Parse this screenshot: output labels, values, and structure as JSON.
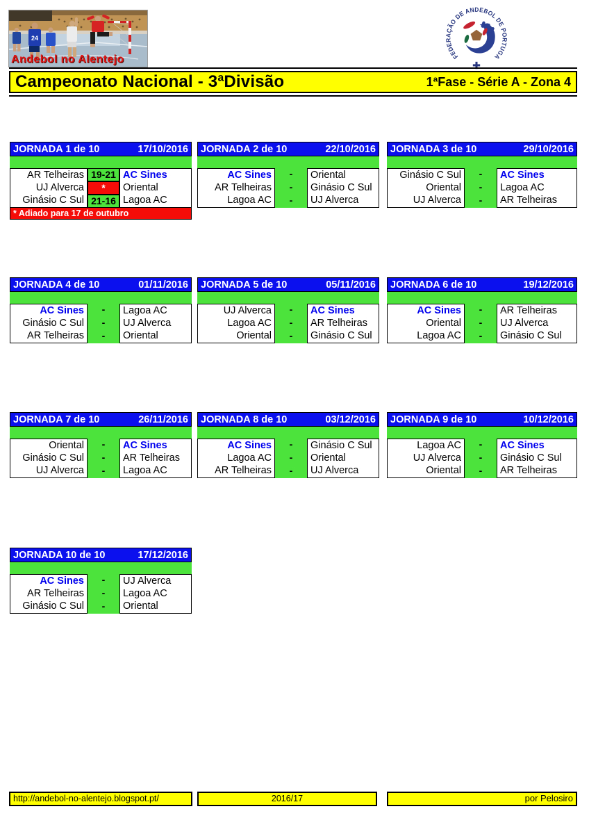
{
  "header": {
    "photo_caption": "Andebol no Alentejo",
    "photo_player_number": "24",
    "logo_ring_text": "FEDERAÇÃO DE ANDEBOL DE PORTUGAL",
    "title": "Campeonato Nacional - 3ªDivisão",
    "subtitle": "1ªFase - Série A - Zona 4"
  },
  "highlight_team": "AC Sines",
  "colors": {
    "header_blue": "#0b10ef",
    "pitch_green": "#4ce33c",
    "alert_red": "#f50b08",
    "banner_yellow": "#ffff00",
    "highlight_team_blue": "#0000ee"
  },
  "jornadas": [
    {
      "title": "JORNADA 1 de 10",
      "date": "17/10/2016",
      "matches": [
        {
          "home": "AR Telheiras",
          "score": "19-21",
          "status": "played",
          "away": "AC Sines"
        },
        {
          "home": "UJ Alverca",
          "score": "*",
          "status": "postponed",
          "away": "Oriental"
        },
        {
          "home": "Ginásio C Sul",
          "score": "21-16",
          "status": "played",
          "away": "Lagoa AC"
        }
      ],
      "note": "* Adiado para 17 de outubro"
    },
    {
      "title": "JORNADA 2 de 10",
      "date": "22/10/2016",
      "matches": [
        {
          "home": "AC Sines",
          "score": "-",
          "status": "fixture",
          "away": "Oriental"
        },
        {
          "home": "AR Telheiras",
          "score": "-",
          "status": "fixture",
          "away": "Ginásio C Sul"
        },
        {
          "home": "Lagoa AC",
          "score": "-",
          "status": "fixture",
          "away": "UJ Alverca"
        }
      ]
    },
    {
      "title": "JORNADA 3 de 10",
      "date": "29/10/2016",
      "matches": [
        {
          "home": "Ginásio C Sul",
          "score": "-",
          "status": "fixture",
          "away": "AC Sines"
        },
        {
          "home": "Oriental",
          "score": "-",
          "status": "fixture",
          "away": "Lagoa AC"
        },
        {
          "home": "UJ Alverca",
          "score": "-",
          "status": "fixture",
          "away": "AR Telheiras"
        }
      ]
    },
    {
      "title": "JORNADA 4 de 10",
      "date": "01/11/2016",
      "matches": [
        {
          "home": "AC Sines",
          "score": "-",
          "status": "fixture",
          "away": "Lagoa AC"
        },
        {
          "home": "Ginásio C Sul",
          "score": "-",
          "status": "fixture",
          "away": "UJ Alverca"
        },
        {
          "home": "AR Telheiras",
          "score": "-",
          "status": "fixture",
          "away": "Oriental"
        }
      ]
    },
    {
      "title": "JORNADA 5 de 10",
      "date": "05/11/2016",
      "matches": [
        {
          "home": "UJ Alverca",
          "score": "-",
          "status": "fixture",
          "away": "AC Sines"
        },
        {
          "home": "Lagoa AC",
          "score": "-",
          "status": "fixture",
          "away": "AR Telheiras"
        },
        {
          "home": "Oriental",
          "score": "-",
          "status": "fixture",
          "away": "Ginásio C Sul"
        }
      ]
    },
    {
      "title": "JORNADA 6 de 10",
      "date": "19/12/2016",
      "matches": [
        {
          "home": "AC Sines",
          "score": "-",
          "status": "fixture",
          "away": "AR Telheiras"
        },
        {
          "home": "Oriental",
          "score": "-",
          "status": "fixture",
          "away": "UJ Alverca"
        },
        {
          "home": "Lagoa AC",
          "score": "-",
          "status": "fixture",
          "away": "Ginásio C Sul"
        }
      ]
    },
    {
      "title": "JORNADA 7 de 10",
      "date": "26/11/2016",
      "matches": [
        {
          "home": "Oriental",
          "score": "-",
          "status": "fixture",
          "away": "AC Sines"
        },
        {
          "home": "Ginásio C Sul",
          "score": "-",
          "status": "fixture",
          "away": "AR Telheiras"
        },
        {
          "home": "UJ Alverca",
          "score": "-",
          "status": "fixture",
          "away": "Lagoa AC"
        }
      ]
    },
    {
      "title": "JORNADA 8 de 10",
      "date": "03/12/2016",
      "matches": [
        {
          "home": "AC Sines",
          "score": "-",
          "status": "fixture",
          "away": "Ginásio C Sul"
        },
        {
          "home": "Lagoa AC",
          "score": "-",
          "status": "fixture",
          "away": "Oriental"
        },
        {
          "home": "AR Telheiras",
          "score": "-",
          "status": "fixture",
          "away": "UJ Alverca"
        }
      ]
    },
    {
      "title": "JORNADA 9 de 10",
      "date": "10/12/2016",
      "matches": [
        {
          "home": "Lagoa AC",
          "score": "-",
          "status": "fixture",
          "away": "AC Sines"
        },
        {
          "home": "UJ Alverca",
          "score": "-",
          "status": "fixture",
          "away": "Ginásio C Sul"
        },
        {
          "home": "Oriental",
          "score": "-",
          "status": "fixture",
          "away": "AR Telheiras"
        }
      ]
    },
    {
      "title": "JORNADA 10 de 10",
      "date": "17/12/2016",
      "matches": [
        {
          "home": "AC Sines",
          "score": "-",
          "status": "fixture",
          "away": "UJ Alverca"
        },
        {
          "home": "AR Telheiras",
          "score": "-",
          "status": "fixture",
          "away": "Lagoa AC"
        },
        {
          "home": "Ginásio C Sul",
          "score": "-",
          "status": "fixture",
          "away": "Oriental"
        }
      ]
    }
  ],
  "footer": {
    "url": "http://andebol-no-alentejo.blogspot.pt/",
    "season": "2016/17",
    "credit": "por Pelosiro"
  }
}
